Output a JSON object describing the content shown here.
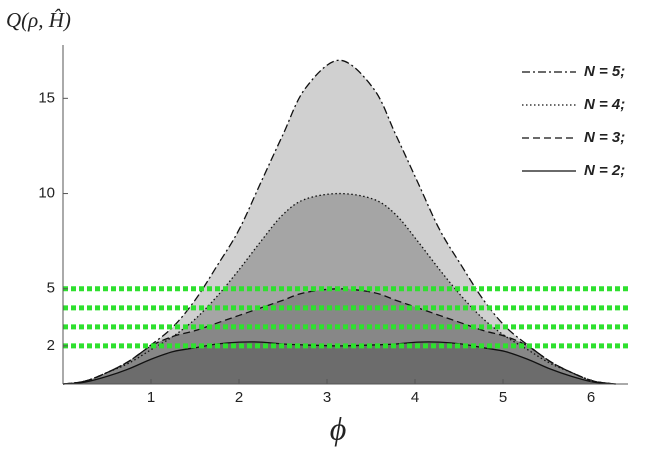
{
  "chart_data": {
    "type": "area",
    "y_label": "Q(ρ, Ĥ)",
    "x_label": "ϕ",
    "x": [
      0,
      0.25,
      0.5,
      0.75,
      1,
      1.25,
      1.5,
      1.75,
      2,
      2.25,
      2.5,
      2.75,
      3.14,
      3.53,
      3.78,
      4.03,
      4.28,
      4.53,
      4.78,
      5.03,
      5.28,
      5.53,
      5.78,
      6.03,
      6.28
    ],
    "series": [
      {
        "name": "N = 5;",
        "color": "#d0d0d0",
        "line_style": "dashdot",
        "values": [
          0,
          0.15,
          0.6,
          1.2,
          2.05,
          3.0,
          4.4,
          6.2,
          8.1,
          10.6,
          13.1,
          15.5,
          17.0,
          15.5,
          13.1,
          10.6,
          8.1,
          6.2,
          4.4,
          3.0,
          2.05,
          1.2,
          0.6,
          0.15,
          0
        ]
      },
      {
        "name": "N = 4;",
        "color": "#a5a5a5",
        "line_style": "dotted",
        "values": [
          0,
          0.15,
          0.6,
          1.1,
          1.8,
          2.5,
          3.4,
          4.6,
          6.0,
          7.5,
          8.9,
          9.7,
          10.0,
          9.7,
          8.9,
          7.5,
          6.0,
          4.6,
          3.4,
          2.5,
          1.8,
          1.1,
          0.6,
          0.15,
          0
        ]
      },
      {
        "name": "N = 3;",
        "color": "#878787",
        "line_style": "dashed",
        "values": [
          0,
          0.15,
          0.6,
          1.2,
          2.0,
          2.5,
          2.8,
          3.2,
          3.6,
          4.0,
          4.4,
          4.8,
          5.0,
          4.8,
          4.4,
          4.0,
          3.6,
          3.2,
          2.8,
          2.5,
          2.0,
          1.2,
          0.6,
          0.15,
          0
        ]
      },
      {
        "name": "N = 2;",
        "color": "#6c6c6c",
        "line_style": "solid",
        "values": [
          0,
          0.1,
          0.4,
          0.8,
          1.3,
          1.7,
          1.9,
          2.1,
          2.2,
          2.2,
          2.1,
          2.05,
          2.0,
          2.05,
          2.1,
          2.2,
          2.2,
          2.1,
          1.9,
          1.7,
          1.3,
          0.8,
          0.4,
          0.1,
          0
        ]
      }
    ],
    "reference_lines": {
      "values": [
        2,
        3,
        4,
        5
      ],
      "color": "#2ee02e"
    },
    "xlim": [
      0,
      6.42
    ],
    "ylim": [
      0,
      17.8
    ],
    "xticks": [
      1,
      2,
      3,
      4,
      5,
      6
    ],
    "yticks": [
      2,
      5,
      10,
      15
    ],
    "legend": "top-right",
    "grid": false
  }
}
